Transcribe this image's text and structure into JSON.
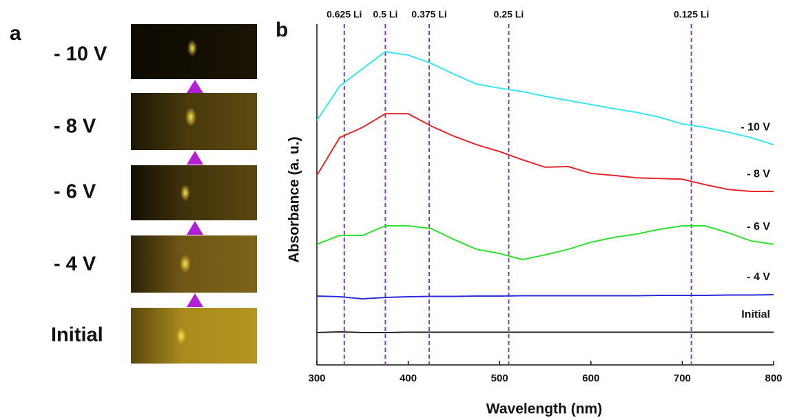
{
  "panel_labels": [
    "a",
    "b"
  ],
  "panel_a": {
    "labels": [
      "- 10 V",
      "- 8 V",
      "- 6 V",
      "- 4 V",
      "Initial"
    ]
  },
  "chart_data": {
    "type": "line",
    "xlabel": "Wavelength (nm)",
    "ylabel": "Absorbance (a. u.)",
    "x": [
      300,
      325,
      350,
      375,
      400,
      425,
      450,
      475,
      500,
      525,
      550,
      575,
      600,
      625,
      650,
      675,
      700,
      725,
      750,
      775,
      800
    ],
    "xlim": [
      300,
      800
    ],
    "xticks": [
      300,
      400,
      500,
      600,
      700,
      800
    ],
    "ylim": [
      0,
      1
    ],
    "series": [
      {
        "name": "- 10 V",
        "color": "#33e6f2",
        "values": [
          0.717,
          0.818,
          0.869,
          0.919,
          0.909,
          0.885,
          0.853,
          0.824,
          0.812,
          0.802,
          0.788,
          0.776,
          0.764,
          0.752,
          0.741,
          0.727,
          0.707,
          0.697,
          0.683,
          0.667,
          0.646
        ]
      },
      {
        "name": "- 8 V",
        "color": "#e8262b",
        "values": [
          0.556,
          0.667,
          0.697,
          0.737,
          0.737,
          0.701,
          0.671,
          0.646,
          0.626,
          0.602,
          0.58,
          0.582,
          0.562,
          0.556,
          0.549,
          0.547,
          0.545,
          0.529,
          0.515,
          0.509,
          0.509
        ]
      },
      {
        "name": "- 6 V",
        "color": "#2ee02e",
        "values": [
          0.354,
          0.38,
          0.38,
          0.408,
          0.408,
          0.4,
          0.368,
          0.339,
          0.327,
          0.309,
          0.323,
          0.339,
          0.36,
          0.374,
          0.384,
          0.398,
          0.408,
          0.408,
          0.388,
          0.364,
          0.354
        ]
      },
      {
        "name": "- 4 V",
        "color": "#2b2bd9",
        "values": [
          0.202,
          0.2,
          0.194,
          0.198,
          0.2,
          0.201,
          0.201,
          0.202,
          0.202,
          0.203,
          0.203,
          0.203,
          0.203,
          0.203,
          0.203,
          0.204,
          0.204,
          0.204,
          0.205,
          0.205,
          0.206
        ]
      },
      {
        "name": "Initial",
        "color": "#222222",
        "values": [
          0.095,
          0.097,
          0.095,
          0.095,
          0.096,
          0.096,
          0.096,
          0.096,
          0.096,
          0.096,
          0.096,
          0.096,
          0.096,
          0.096,
          0.096,
          0.096,
          0.096,
          0.096,
          0.096,
          0.096,
          0.096
        ]
      }
    ],
    "markers": [
      {
        "x": 330,
        "label": "0.625 Li",
        "color": "#7b3fb0"
      },
      {
        "x": 375,
        "label": "0.5 Li",
        "color": "#7b3fb0"
      },
      {
        "x": 423,
        "label": "0.375 Li",
        "color": "#7b3fb0"
      },
      {
        "x": 510,
        "label": "0.25 Li",
        "color": "#7b3fb0"
      },
      {
        "x": 710,
        "label": "0.125 Li",
        "color": "#7b3fb0"
      }
    ]
  }
}
